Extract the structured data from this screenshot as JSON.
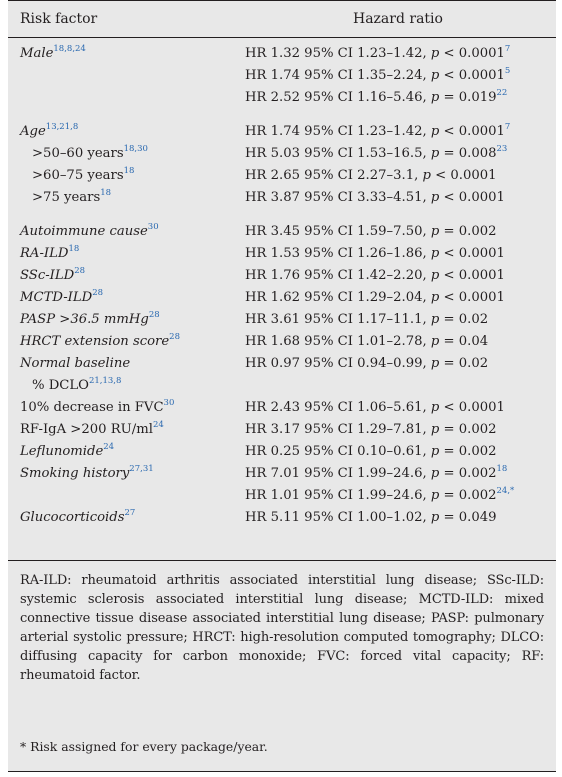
{
  "header": {
    "risk_factor": "Risk factor",
    "hazard_ratio": "Hazard ratio"
  },
  "rows": [
    {
      "factor": "Male",
      "factor_refs": "18,8,24",
      "hr": "HR 1.32 95% CI 1.23–1.42, ",
      "p": "p",
      "p_rest": " < 0.0001",
      "hr_refs": "7"
    },
    {
      "factor": "",
      "factor_refs": "",
      "hr": "HR 1.74 95% CI 1.35–2.24, ",
      "p": "p",
      "p_rest": " < 0.0001",
      "hr_refs": "5"
    },
    {
      "factor": "",
      "factor_refs": "",
      "hr": "HR 2.52 95% CI 1.16–5.46, ",
      "p": "p",
      "p_rest": " = 0.019",
      "hr_refs": "22"
    },
    {
      "factor": "Age",
      "factor_refs": "13,21,8",
      "hr": "HR 1.74 95% CI 1.23–1.42, ",
      "p": "p",
      "p_rest": " < 0.0001",
      "hr_refs": "7"
    },
    {
      "factor": ">50–60 years",
      "factor_refs": "18,30",
      "hr": "HR 5.03 95% CI 1.53–16.5, ",
      "p": "p",
      "p_rest": " = 0.008",
      "hr_refs": "23"
    },
    {
      "factor": ">60–75 years",
      "factor_refs": "18",
      "hr": "HR 2.65 95% CI 2.27–3.1, ",
      "p": "p",
      "p_rest": " < 0.0001",
      "hr_refs": ""
    },
    {
      "factor": ">75 years",
      "factor_refs": "18",
      "hr": "HR 3.87 95% CI 3.33–4.51, ",
      "p": "p",
      "p_rest": " < 0.0001",
      "hr_refs": ""
    },
    {
      "factor": "Autoimmune cause",
      "factor_refs": "30",
      "hr": "HR 3.45 95% CI 1.59–7.50, ",
      "p": "p",
      "p_rest": " = 0.002",
      "hr_refs": ""
    },
    {
      "factor": "RA-ILD",
      "factor_refs": "18",
      "hr": "HR 1.53 95% CI 1.26–1.86, ",
      "p": "p",
      "p_rest": " < 0.0001",
      "hr_refs": ""
    },
    {
      "factor": "SSc-ILD",
      "factor_refs": "28",
      "hr": "HR 1.76 95% CI 1.42–2.20, ",
      "p": "p",
      "p_rest": " < 0.0001",
      "hr_refs": ""
    },
    {
      "factor": "MCTD-ILD",
      "factor_refs": "28",
      "hr": "HR 1.62 95% CI 1.29–2.04, ",
      "p": "p",
      "p_rest": " < 0.0001",
      "hr_refs": ""
    },
    {
      "factor": "PASP >36.5 mmHg",
      "factor_refs": "28",
      "hr": "HR 3.61 95% CI 1.17–11.1, ",
      "p": "p",
      "p_rest": " = 0.02",
      "hr_refs": ""
    },
    {
      "factor": "HRCT extension score",
      "factor_refs": "28",
      "hr": "HR 1.68 95% CI 1.01–2.78, ",
      "p": "p",
      "p_rest": " = 0.04",
      "hr_refs": ""
    },
    {
      "factor": "Normal baseline",
      "factor_refs": "",
      "hr": "HR 0.97 95% CI 0.94–0.99, ",
      "p": "p",
      "p_rest": " = 0.02",
      "hr_refs": ""
    },
    {
      "factor": "% DCLO",
      "factor_refs": "21,13,8",
      "hr": "",
      "p": "",
      "p_rest": "",
      "hr_refs": ""
    },
    {
      "factor": "10% decrease in FVC",
      "factor_refs": "30",
      "hr": "HR 2.43 95% CI 1.06–5.61, ",
      "p": "p",
      "p_rest": " < 0.0001",
      "hr_refs": ""
    },
    {
      "factor": "RF-IgA >200 RU/ml",
      "factor_refs": "24",
      "hr": "HR 3.17 95% CI 1.29–7.81, ",
      "p": "p",
      "p_rest": " = 0.002",
      "hr_refs": ""
    },
    {
      "factor": "Leflunomide",
      "factor_refs": "24",
      "hr": "HR 0.25 95% CI 0.10–0.61, ",
      "p": "p",
      "p_rest": " = 0.002",
      "hr_refs": ""
    },
    {
      "factor": "Smoking history",
      "factor_refs": "27,31",
      "hr": "HR 7.01 95% CI 1.99–24.6, ",
      "p": "p",
      "p_rest": " = 0.002",
      "hr_refs": "18"
    },
    {
      "factor": "",
      "factor_refs": "",
      "hr": "HR 1.01 95% CI 1.99–24.6, ",
      "p": "p",
      "p_rest": " = 0.002",
      "hr_refs": "24,*"
    },
    {
      "factor": "Glucocorticoids",
      "factor_refs": "27",
      "hr": "HR 5.11 95% CI 1.00–1.02, ",
      "p": "p",
      "p_rest": " = 0.049",
      "hr_refs": ""
    }
  ],
  "footnote": {
    "abbreviations": "RA-ILD: rheumatoid arthritis associated interstitial lung disease; SSc-ILD: systemic sclerosis associated interstitial lung disease; MCTD-ILD: mixed connective tissue disease associated interstitial lung disease; PASP: pulmonary arterial systolic pressure; HRCT: high-resolution computed tomography; DLCO: diffusing capacity for carbon monoxide; FVC: forced vital capacity; RF: rheumatoid factor.",
    "star_note": "* Risk assigned for every package/year."
  },
  "colors": {
    "reference_superscript": "#2a69b0",
    "panel_background": "#e8e8e8",
    "text": "#231f20"
  }
}
